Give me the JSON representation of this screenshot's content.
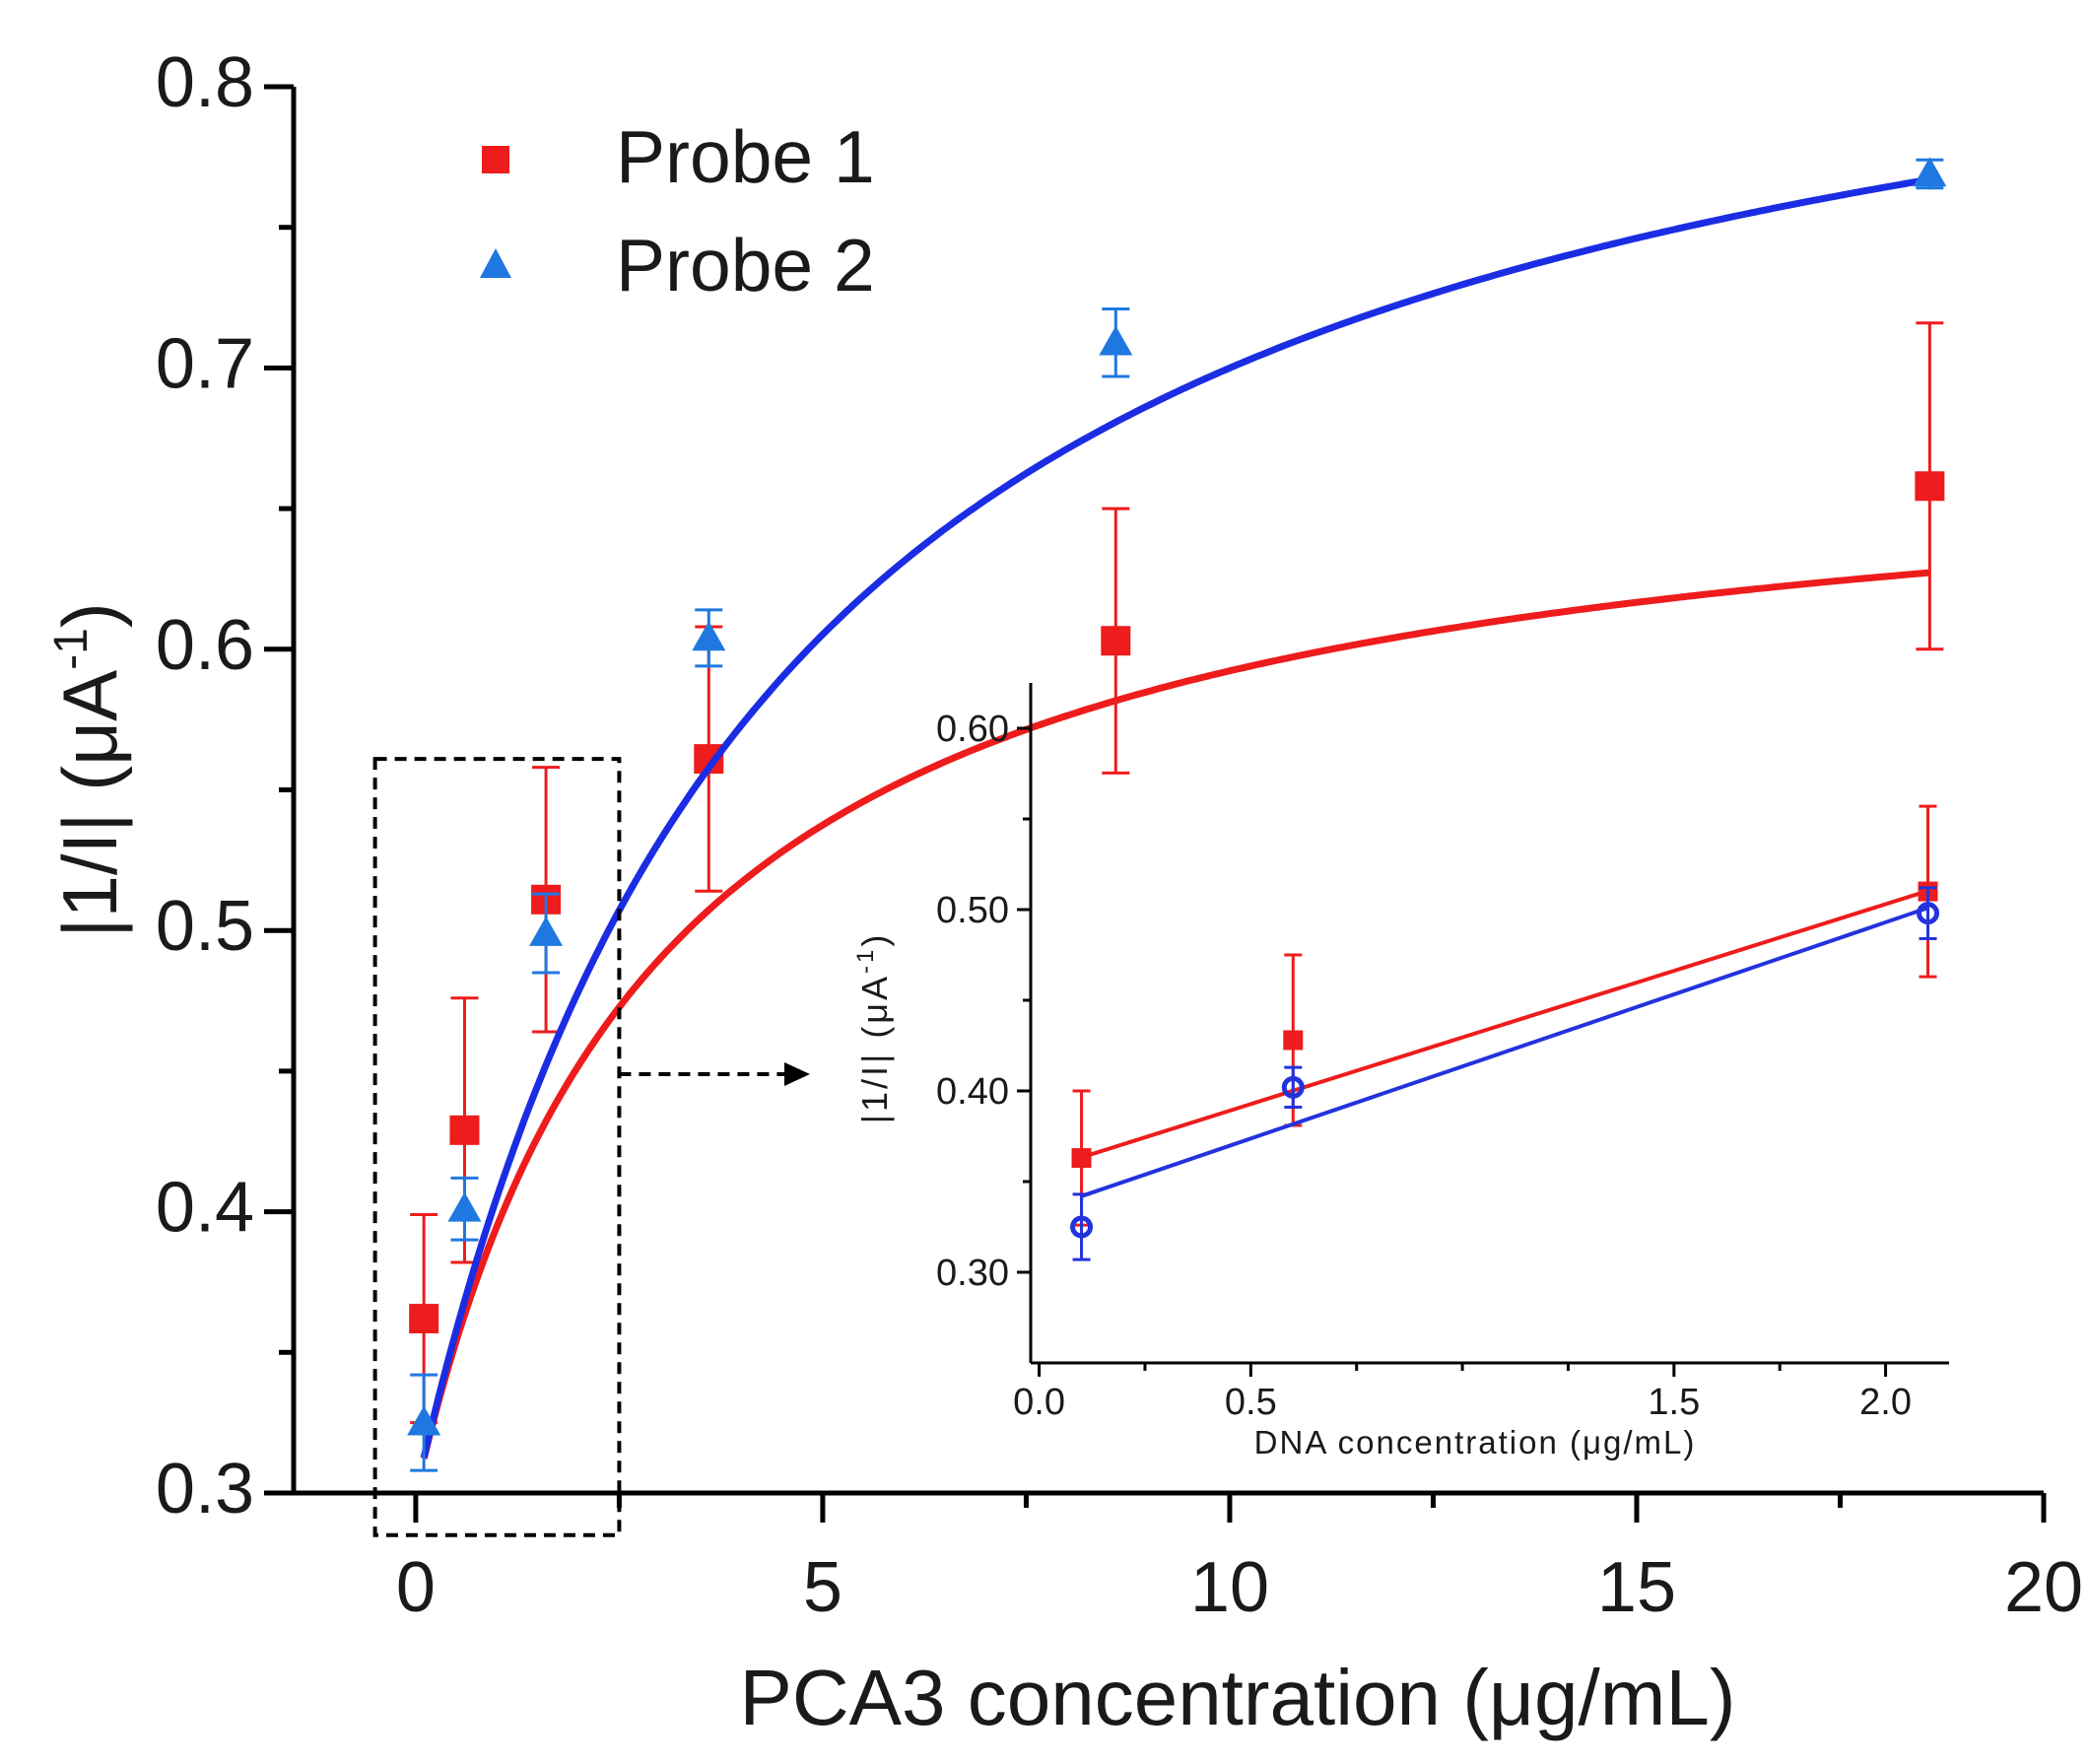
{
  "chart_data": [
    {
      "type": "scatter",
      "title": "",
      "xlabel": "PCA3 concentration (μg/mL)",
      "ylabel": "|1/I| (μA",
      "ylabel_sup": "-1",
      "ylabel_close": ")",
      "xlim": [
        -1.5,
        20
      ],
      "ylim": [
        0.3,
        0.8
      ],
      "xticks": [
        0,
        5,
        10,
        15,
        20
      ],
      "xtick_labels": [
        "0",
        "5",
        "10",
        "15",
        "20"
      ],
      "yticks": [
        0.3,
        0.4,
        0.5,
        0.6,
        0.7,
        0.8
      ],
      "ytick_labels": [
        "0.3",
        "0.4",
        "0.5",
        "0.6",
        "0.7",
        "0.8"
      ],
      "legend": {
        "position": "top-left",
        "entries": [
          "Probe 1",
          "Probe 2"
        ]
      },
      "series": [
        {
          "name": "Probe 1",
          "color": "#ee1c1c",
          "marker": "square",
          "x": [
            0.1,
            0.6,
            1.6,
            3.6,
            8.6,
            18.6
          ],
          "y": [
            0.362,
            0.429,
            0.511,
            0.561,
            0.603,
            0.658
          ],
          "yerr": [
            0.037,
            0.047,
            0.047,
            0.047,
            0.047,
            0.058
          ],
          "fit": {
            "model": "hyperbolic",
            "y0": 0.3,
            "amax": 0.38,
            "k": 3.0
          }
        },
        {
          "name": "Probe 2",
          "color": "#1f78e0",
          "marker": "triangle",
          "x": [
            0.1,
            0.6,
            1.6,
            3.6,
            8.6,
            18.6
          ],
          "y": [
            0.325,
            0.401,
            0.499,
            0.604,
            0.709,
            0.769
          ],
          "yerr": [
            0.017,
            0.011,
            0.014,
            0.01,
            0.012,
            0.005
          ],
          "fit": {
            "model": "hyperbolic",
            "y0": 0.3,
            "amax": 0.58,
            "k": 4.5
          }
        }
      ],
      "zoom_box": {
        "x_range": [
          -0.5,
          2.5
        ],
        "y_range": [
          0.285,
          0.561
        ]
      }
    },
    {
      "type": "scatter",
      "title": "",
      "xlabel": "DNA concentration (μg/mL)",
      "ylabel": "|1/I| (μA",
      "ylabel_sup": "-1",
      "ylabel_close": ")",
      "xlim": [
        -0.02,
        2.15
      ],
      "ylim": [
        0.25,
        0.625
      ],
      "xticks": [
        0.0,
        0.5,
        1.5,
        2.0
      ],
      "xtick_labels": [
        "0.0",
        "0.5",
        "1.5",
        "2.0"
      ],
      "minor_xticks": [
        0.25,
        0.75,
        1.0,
        1.25,
        1.75
      ],
      "yticks": [
        0.3,
        0.4,
        0.5,
        0.6
      ],
      "ytick_labels": [
        "0.30",
        "0.40",
        "0.50",
        "0.60"
      ],
      "series": [
        {
          "name": "Probe 1",
          "color": "#ee1c1c",
          "marker": "square",
          "x": [
            0.1,
            0.6,
            2.1
          ],
          "y": [
            0.363,
            0.428,
            0.51
          ],
          "yerr": [
            0.037,
            0.047,
            0.047
          ],
          "fit": {
            "model": "linear",
            "slope": 0.0735,
            "intercept": 0.356,
            "x_range": [
              0.1,
              2.1
            ]
          }
        },
        {
          "name": "Probe 2",
          "color": "#2233dd",
          "marker": "circle",
          "x": [
            0.1,
            0.6,
            2.1
          ],
          "y": [
            0.325,
            0.402,
            0.498
          ],
          "yerr": [
            0.018,
            0.011,
            0.014
          ],
          "fit": {
            "model": "linear",
            "slope": 0.0795,
            "intercept": 0.334,
            "x_range": [
              0.1,
              2.1
            ]
          }
        }
      ]
    }
  ]
}
